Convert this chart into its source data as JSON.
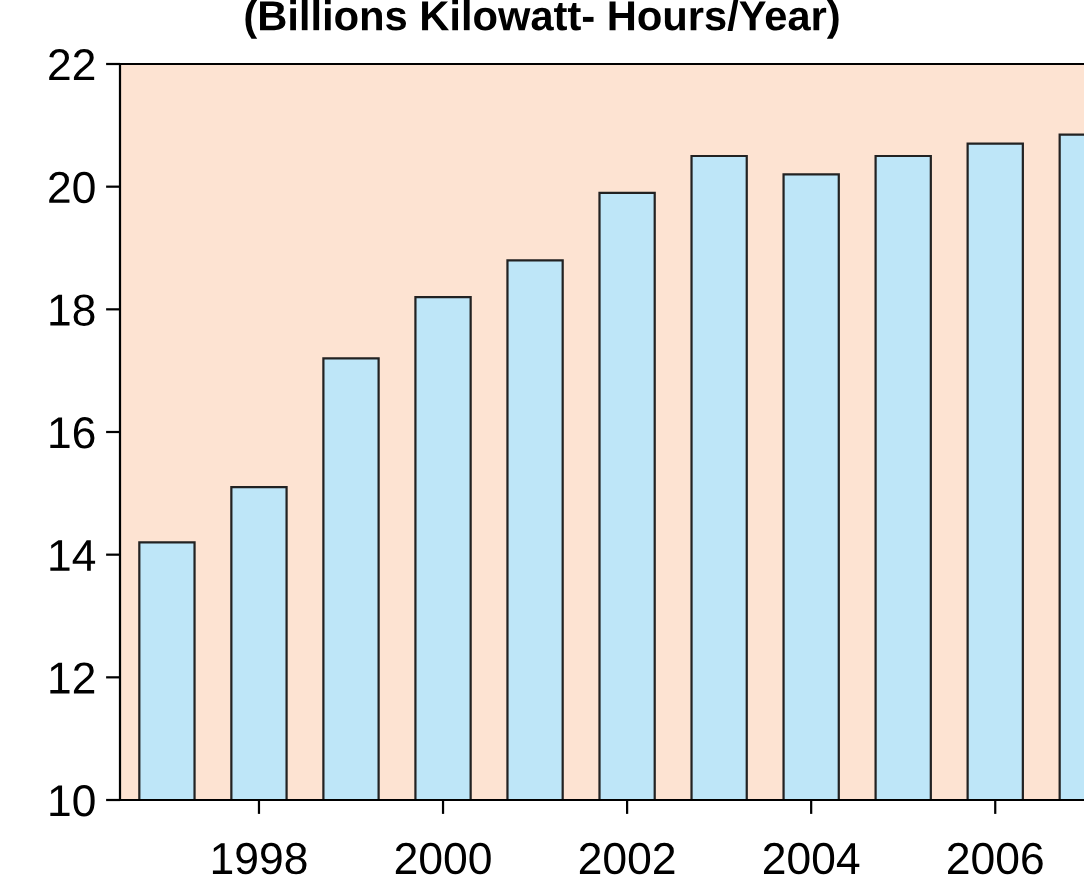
{
  "chart_data": {
    "type": "bar",
    "title": "(Billions Kilowatt- Hours/Year)",
    "categories": [
      null,
      "1998",
      null,
      "2000",
      null,
      "2002",
      null,
      "2004",
      null,
      "2006",
      null
    ],
    "values": [
      14.2,
      15.1,
      17.2,
      18.2,
      18.8,
      19.9,
      20.5,
      20.2,
      20.5,
      20.7,
      20.85
    ],
    "color": "#bee6f8",
    "ylim": [
      10,
      22
    ],
    "yticks": [
      10,
      12,
      14,
      16,
      18,
      20,
      22
    ],
    "grid": false,
    "legend": false
  }
}
